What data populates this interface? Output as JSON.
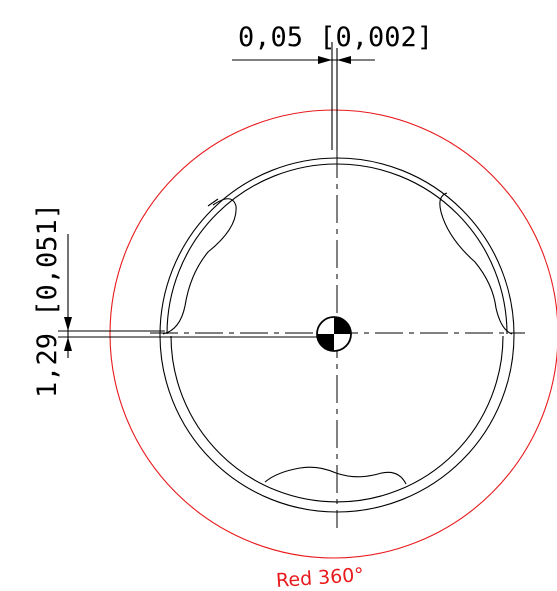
{
  "dimensions": {
    "horizontal_offset": "0,05 [0,002]",
    "vertical_offset": "1,29 [0,051]"
  },
  "annotations": {
    "rotation_label": "Red 360°"
  },
  "colors": {
    "line": "#000000",
    "rotation_circle": "#e8191c",
    "background": "#ffffff"
  }
}
